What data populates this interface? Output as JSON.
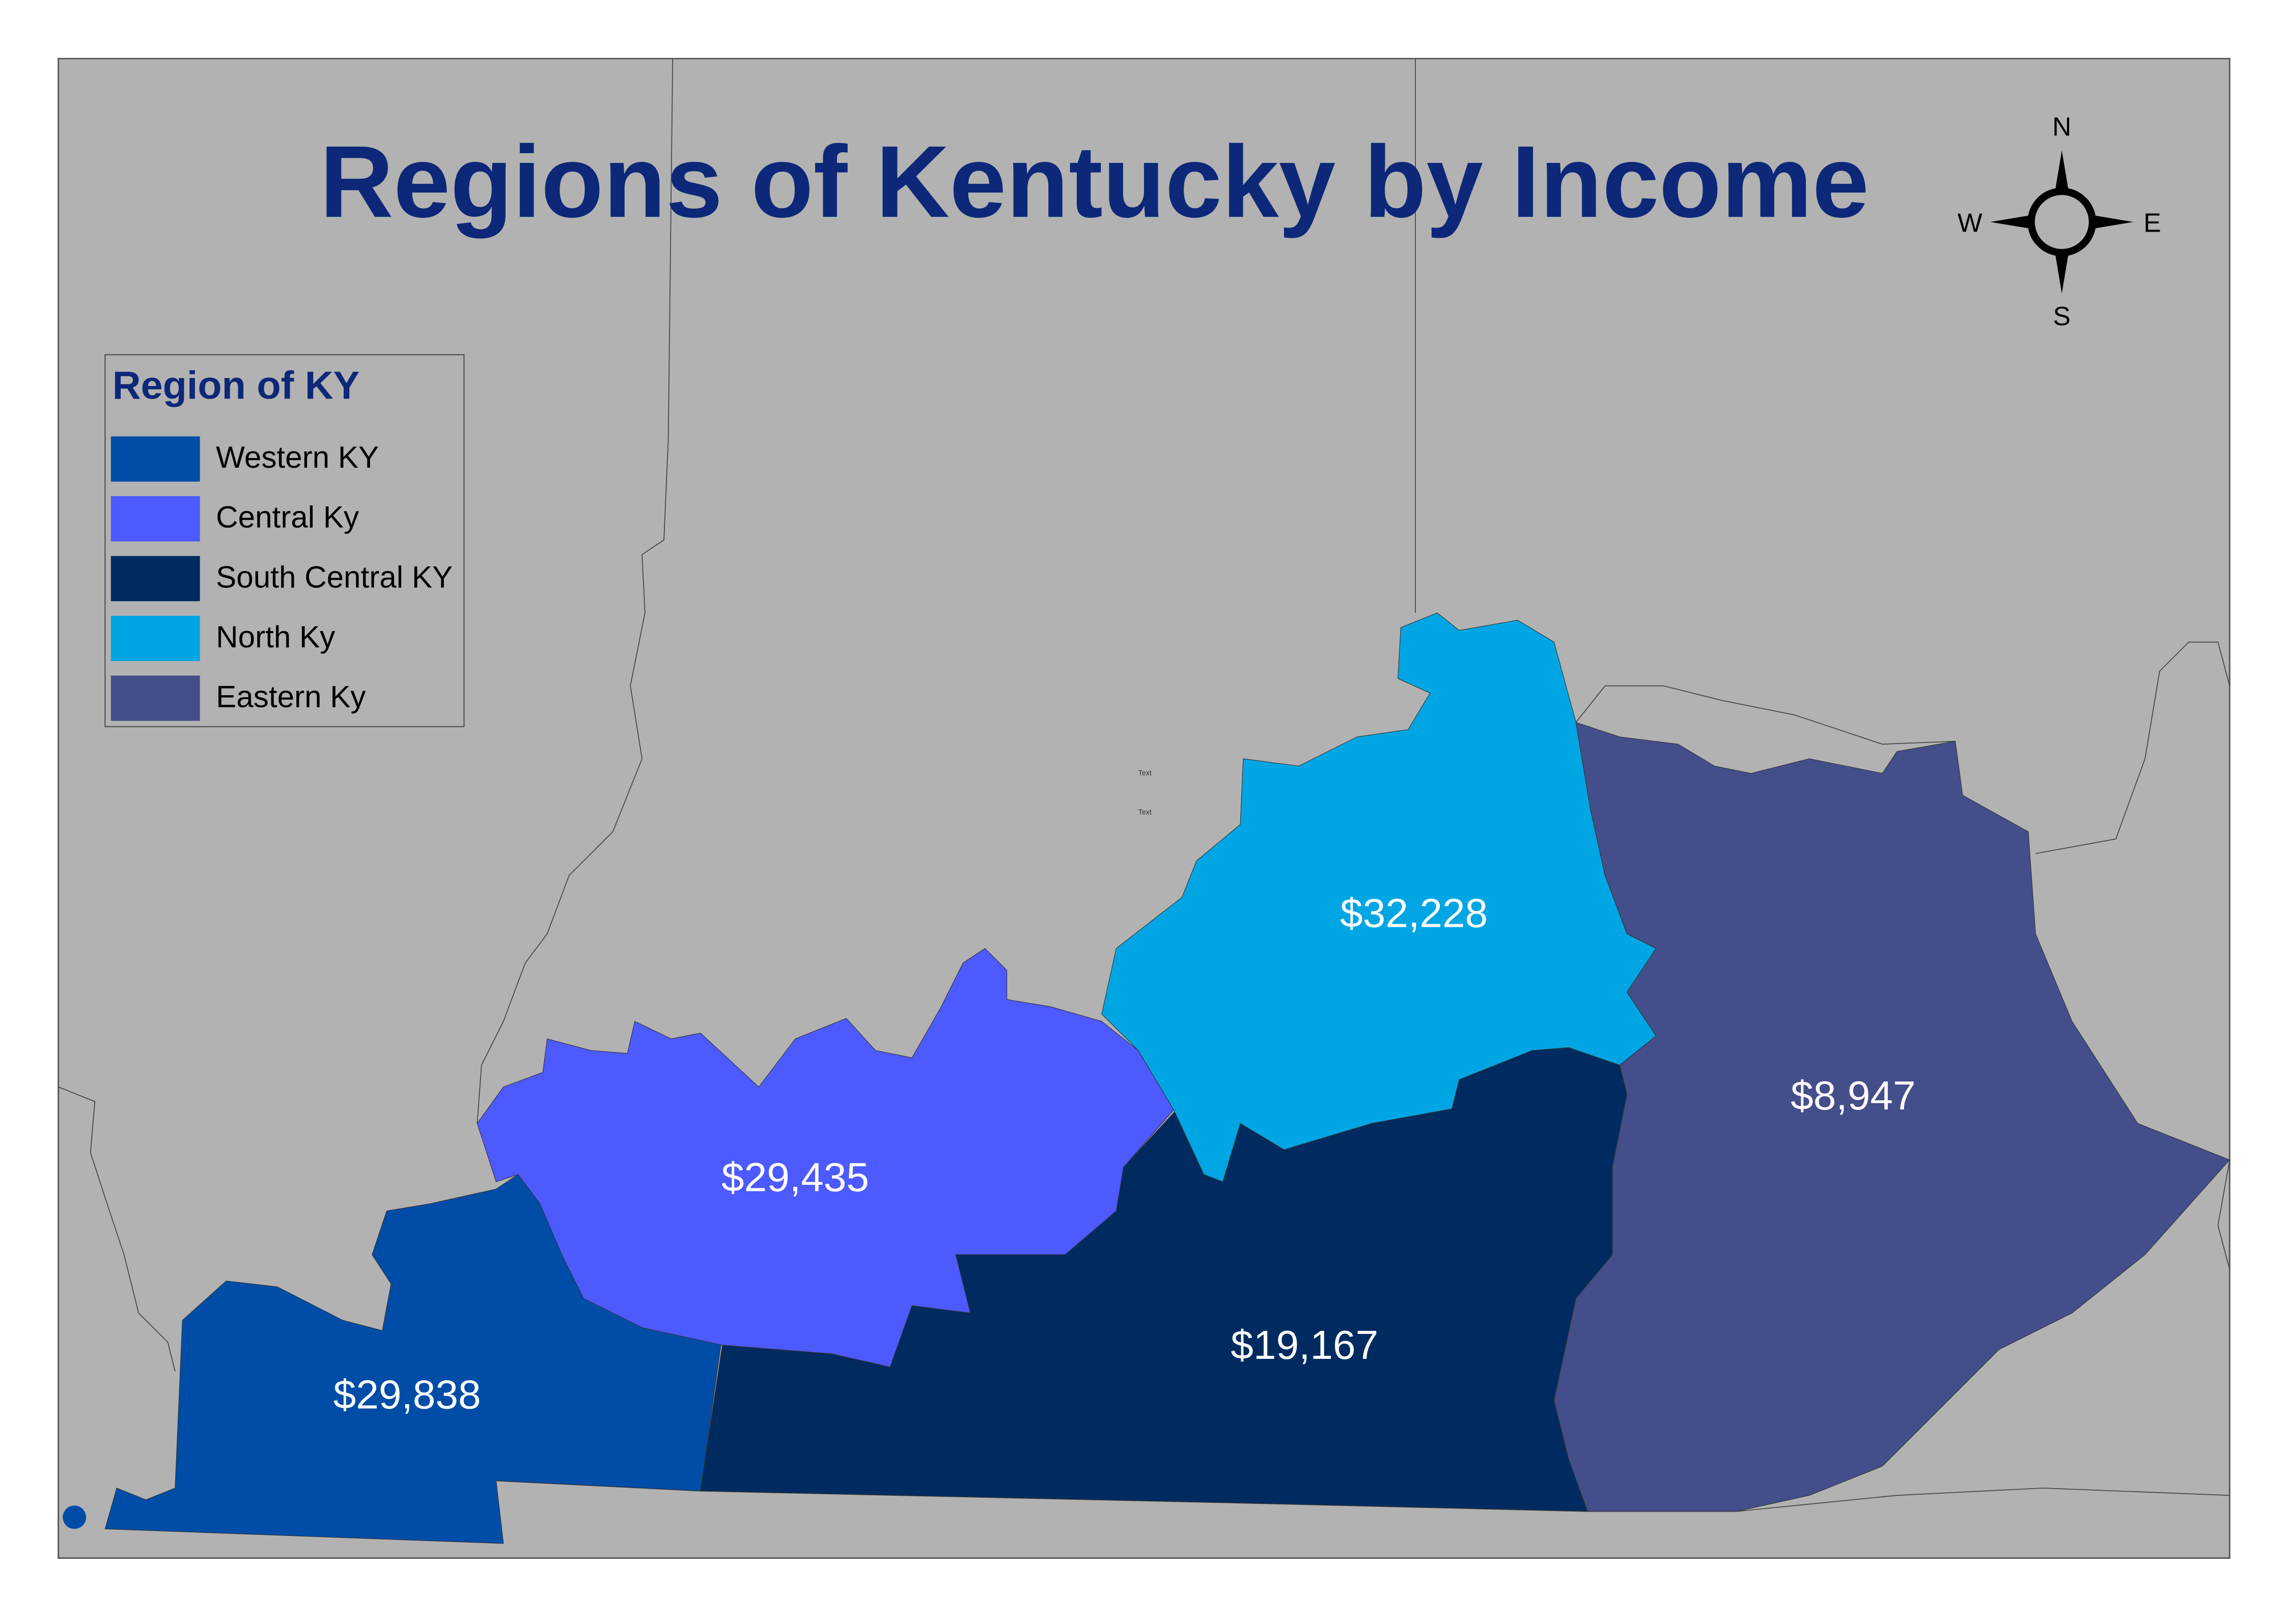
{
  "title": "Regions of Kentucky by Income",
  "legend": {
    "title": "Region of KY",
    "items": [
      {
        "label": "Western KY",
        "color": "#004da8"
      },
      {
        "label": "Central Ky",
        "color": "#4d5aff"
      },
      {
        "label": "South Central KY",
        "color": "#002b61"
      },
      {
        "label": "North Ky",
        "color": "#00a6e3"
      },
      {
        "label": "Eastern Ky",
        "color": "#444e8a"
      }
    ]
  },
  "regions": [
    {
      "label": "$29,838"
    },
    {
      "label": "$29,435"
    },
    {
      "label": "$19,167"
    },
    {
      "label": "$32,228"
    },
    {
      "label": "$8,947"
    }
  ],
  "compass": {
    "north": "N",
    "south": "S",
    "east": "E",
    "west": "W"
  },
  "map_labels": [
    "Text",
    "Text"
  ]
}
